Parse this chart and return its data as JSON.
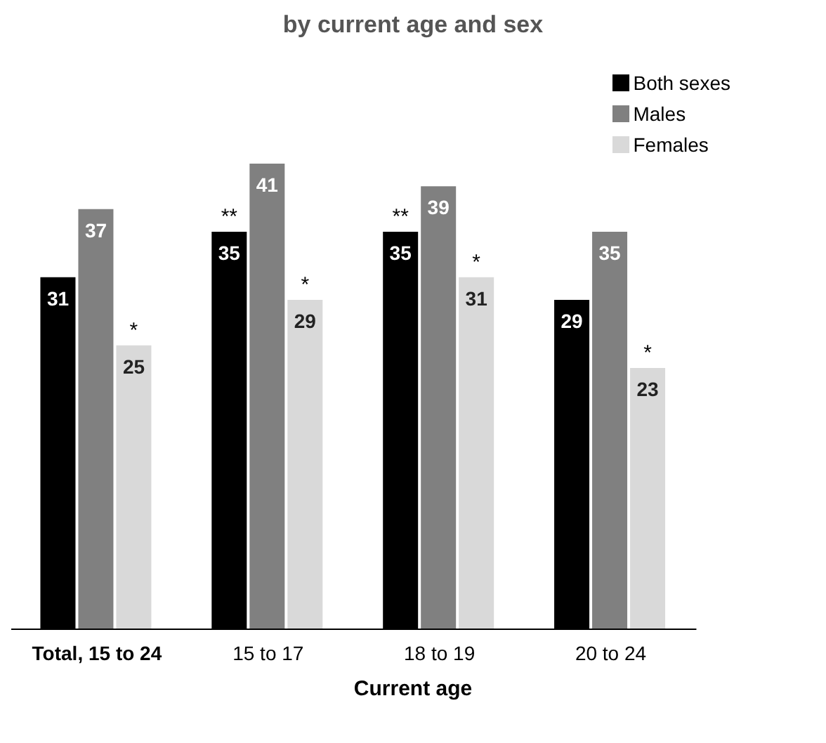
{
  "chart_data": {
    "type": "bar",
    "title": "by current age and sex",
    "xlabel": "Current age",
    "categories": [
      "Total, 15 to 24",
      "15 to 17",
      "18 to 19",
      "20 to 24"
    ],
    "series": [
      {
        "name": "Both sexes",
        "color": "#000000",
        "values": [
          31,
          35,
          35,
          29
        ]
      },
      {
        "name": "Males",
        "color": "#808080",
        "values": [
          37,
          41,
          39,
          35
        ]
      },
      {
        "name": "Females",
        "color": "#d9d9d9",
        "values": [
          25,
          29,
          31,
          23
        ]
      }
    ],
    "data_labels": true,
    "legend": "top right",
    "grid": false,
    "annotations": [
      "*",
      "**",
      "*",
      "**",
      "*",
      "*"
    ]
  }
}
